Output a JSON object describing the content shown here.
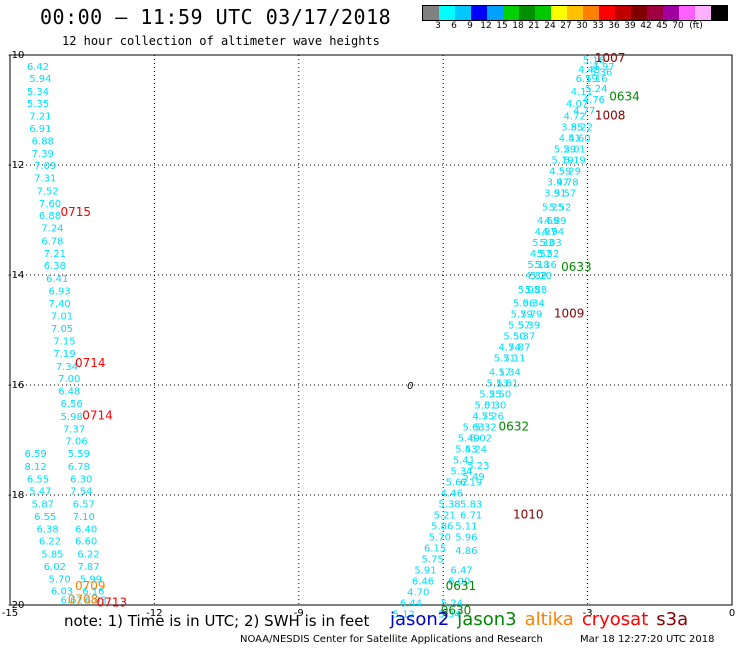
{
  "header": {
    "title": "00:00 – 11:59 UTC 03/17/2018",
    "subtitle": "12 hour collection of altimeter wave heights"
  },
  "legend": {
    "colors": [
      "#808080",
      "#00ffff",
      "#00c8ff",
      "#0000ff",
      "#00a0ff",
      "#00d000",
      "#009000",
      "#00c800",
      "#ffff00",
      "#ffc000",
      "#ff8000",
      "#ff0000",
      "#c00000",
      "#800000",
      "#a00040",
      "#a000a0",
      "#ff60ff",
      "#ffb0ff",
      "#000000"
    ],
    "labels": [
      "3",
      "6",
      "9",
      "12",
      "15",
      "18",
      "21",
      "24",
      "27",
      "30",
      "33",
      "36",
      "39",
      "42",
      "45",
      "70"
    ],
    "unit": "(ft)"
  },
  "note": "note: 1) Time is in UTC; 2) SWH is in feet",
  "missions": [
    {
      "name": "jason2",
      "color": "#0000cc"
    },
    {
      "name": "jason3",
      "color": "#008800"
    },
    {
      "name": "altika",
      "color": "#ff8000"
    },
    {
      "name": "cryosat",
      "color": "#ff0000"
    },
    {
      "name": "s3a",
      "color": "#880000"
    }
  ],
  "footer": {
    "credit": "NOAA/NESDIS Center for Satellite Applications and Research",
    "timestamp": "Mar 18 12:27:20 UTC 2018"
  },
  "chart_data": {
    "type": "scatter",
    "title": "00:00 – 11:59 UTC 03/17/2018",
    "subtitle": "12 hour collection of altimeter wave heights",
    "xlim": [
      -15,
      0
    ],
    "ylim": [
      -20,
      -10
    ],
    "x_ticks": [
      "-15",
      "-12",
      "-9",
      "-6",
      "-3",
      "0"
    ],
    "y_ticks": [
      "-10",
      "-12",
      "-14",
      "-16",
      "-18",
      "-20"
    ],
    "grid": true,
    "contour_label": "0",
    "tracks": [
      {
        "name": "track-left",
        "color": "#00e0ff",
        "points": [
          {
            "x": -14.65,
            "y": -10.2,
            "v": "6.42"
          },
          {
            "x": -14.6,
            "y": -10.42,
            "v": "5.94"
          },
          {
            "x": -14.65,
            "y": -10.65,
            "v": "5.34"
          },
          {
            "x": -14.65,
            "y": -10.87,
            "v": "5.35"
          },
          {
            "x": -14.6,
            "y": -11.1,
            "v": "7.21"
          },
          {
            "x": -14.6,
            "y": -11.33,
            "v": "6.91"
          },
          {
            "x": -14.55,
            "y": -11.55,
            "v": "6.88"
          },
          {
            "x": -14.55,
            "y": -11.78,
            "v": "7.39"
          },
          {
            "x": -14.5,
            "y": -12.0,
            "v": "7.09"
          },
          {
            "x": -14.5,
            "y": -12.23,
            "v": "7.31"
          },
          {
            "x": -14.45,
            "y": -12.46,
            "v": "7.52"
          },
          {
            "x": -14.4,
            "y": -12.69,
            "v": "7.60"
          },
          {
            "x": -14.4,
            "y": -12.91,
            "v": "6.88"
          },
          {
            "x": -14.35,
            "y": -13.14,
            "v": "7.24"
          },
          {
            "x": -14.35,
            "y": -13.37,
            "v": "6.78"
          },
          {
            "x": -14.3,
            "y": -13.6,
            "v": "7.21"
          },
          {
            "x": -14.3,
            "y": -13.82,
            "v": "6.38"
          },
          {
            "x": -14.25,
            "y": -14.05,
            "v": "6.41"
          },
          {
            "x": -14.2,
            "y": -14.28,
            "v": "6.93"
          },
          {
            "x": -14.2,
            "y": -14.51,
            "v": "7.40"
          },
          {
            "x": -14.15,
            "y": -14.74,
            "v": "7.01"
          },
          {
            "x": -14.15,
            "y": -14.96,
            "v": "7.05"
          },
          {
            "x": -14.1,
            "y": -15.19,
            "v": "7.15"
          },
          {
            "x": -14.1,
            "y": -15.42,
            "v": "7.19"
          },
          {
            "x": -14.05,
            "y": -15.65,
            "v": "7.34"
          },
          {
            "x": -14.0,
            "y": -15.87,
            "v": "7.00"
          },
          {
            "x": -14.0,
            "y": -16.1,
            "v": "6.48"
          },
          {
            "x": -13.95,
            "y": -16.33,
            "v": "6.56"
          },
          {
            "x": -13.95,
            "y": -16.56,
            "v": "5.98"
          },
          {
            "x": -13.9,
            "y": -16.79,
            "v": "7.37"
          },
          {
            "x": -13.85,
            "y": -17.01,
            "v": "7.06"
          },
          {
            "x": -13.8,
            "y": -17.24,
            "v": "5.59"
          },
          {
            "x": -13.8,
            "y": -17.47,
            "v": "6.78"
          },
          {
            "x": -13.75,
            "y": -17.7,
            "v": "6.30"
          },
          {
            "x": -13.75,
            "y": -17.92,
            "v": "7.54"
          },
          {
            "x": -13.7,
            "y": -18.15,
            "v": "6.57"
          },
          {
            "x": -13.7,
            "y": -18.38,
            "v": "7.10"
          },
          {
            "x": -13.65,
            "y": -18.61,
            "v": "6.40"
          },
          {
            "x": -13.65,
            "y": -18.83,
            "v": "6.60"
          },
          {
            "x": -13.6,
            "y": -19.06,
            "v": "6.22"
          },
          {
            "x": -13.6,
            "y": -19.29,
            "v": "7.87"
          },
          {
            "x": -13.55,
            "y": -19.52,
            "v": "5.99"
          },
          {
            "x": -13.5,
            "y": -19.74,
            "v": "6.16"
          },
          {
            "x": -13.45,
            "y": -19.9,
            "v": "6.03"
          }
        ]
      },
      {
        "name": "track-left-2",
        "color": "#00e0ff",
        "points": [
          {
            "x": -14.7,
            "y": -17.24,
            "v": "6.59"
          },
          {
            "x": -14.7,
            "y": -17.47,
            "v": "8.12"
          },
          {
            "x": -14.65,
            "y": -17.7,
            "v": "6.55"
          },
          {
            "x": -14.6,
            "y": -17.92,
            "v": "5.47"
          },
          {
            "x": -14.55,
            "y": -18.15,
            "v": "5.87"
          },
          {
            "x": -14.5,
            "y": -18.38,
            "v": "6.55"
          },
          {
            "x": -14.45,
            "y": -18.61,
            "v": "6.38"
          },
          {
            "x": -14.4,
            "y": -18.83,
            "v": "6.22"
          },
          {
            "x": -14.35,
            "y": -19.06,
            "v": "5.85"
          },
          {
            "x": -14.3,
            "y": -19.29,
            "v": "6.02"
          },
          {
            "x": -14.2,
            "y": -19.52,
            "v": "5.70"
          },
          {
            "x": -14.15,
            "y": -19.74,
            "v": "6.03"
          },
          {
            "x": -13.95,
            "y": -19.9,
            "v": "6.62"
          }
        ]
      },
      {
        "name": "track-right",
        "color": "#00e0ff",
        "points": [
          {
            "x": -3.1,
            "y": -10.08,
            "v": "5.16"
          },
          {
            "x": -2.9,
            "y": -10.2,
            "v": "4.97"
          },
          {
            "x": -3.2,
            "y": -10.25,
            "v": "4.48"
          },
          {
            "x": -2.95,
            "y": -10.3,
            "v": "5.36"
          },
          {
            "x": -3.25,
            "y": -10.42,
            "v": "6.19"
          },
          {
            "x": -3.05,
            "y": -10.42,
            "v": "5.16"
          },
          {
            "x": -3.35,
            "y": -10.65,
            "v": "4.11"
          },
          {
            "x": -3.05,
            "y": -10.6,
            "v": "5.24"
          },
          {
            "x": -3.45,
            "y": -10.87,
            "v": "4.07"
          },
          {
            "x": -3.1,
            "y": -10.8,
            "v": "4.76"
          },
          {
            "x": -3.5,
            "y": -11.1,
            "v": "4.72"
          },
          {
            "x": -3.3,
            "y": -11.0,
            "v": "4.77"
          },
          {
            "x": -3.55,
            "y": -11.3,
            "v": "3.85"
          },
          {
            "x": -3.35,
            "y": -11.3,
            "v": "5.22"
          },
          {
            "x": -3.6,
            "y": -11.5,
            "v": "4.51"
          },
          {
            "x": -3.4,
            "y": -11.5,
            "v": "4.60"
          },
          {
            "x": -3.7,
            "y": -11.7,
            "v": "5.29"
          },
          {
            "x": -3.5,
            "y": -11.7,
            "v": "5.01"
          },
          {
            "x": -3.75,
            "y": -11.9,
            "v": "5.19"
          },
          {
            "x": -3.5,
            "y": -11.9,
            "v": "5.19"
          },
          {
            "x": -3.8,
            "y": -12.1,
            "v": "4.59"
          },
          {
            "x": -3.6,
            "y": -12.1,
            "v": "5.29"
          },
          {
            "x": -3.85,
            "y": -12.3,
            "v": "3.97"
          },
          {
            "x": -3.65,
            "y": -12.3,
            "v": "4.78"
          },
          {
            "x": -3.9,
            "y": -12.5,
            "v": "3.91"
          },
          {
            "x": -3.7,
            "y": -12.5,
            "v": "5.57"
          },
          {
            "x": -3.95,
            "y": -12.75,
            "v": "5.25"
          },
          {
            "x": -3.8,
            "y": -12.75,
            "v": "5.52"
          },
          {
            "x": -4.05,
            "y": -13.0,
            "v": "4.69"
          },
          {
            "x": -3.9,
            "y": -13.0,
            "v": "4.89"
          },
          {
            "x": -4.1,
            "y": -13.2,
            "v": "4.97"
          },
          {
            "x": -3.95,
            "y": -13.2,
            "v": "4.94"
          },
          {
            "x": -4.15,
            "y": -13.4,
            "v": "5.33"
          },
          {
            "x": -4.0,
            "y": -13.4,
            "v": "5.03"
          },
          {
            "x": -4.2,
            "y": -13.6,
            "v": "4.52"
          },
          {
            "x": -4.05,
            "y": -13.6,
            "v": "5.52"
          },
          {
            "x": -4.25,
            "y": -13.8,
            "v": "5.18"
          },
          {
            "x": -4.1,
            "y": -13.8,
            "v": "5.16"
          },
          {
            "x": -4.3,
            "y": -14.0,
            "v": "4.82"
          },
          {
            "x": -4.2,
            "y": -14.0,
            "v": "5.20"
          },
          {
            "x": -4.45,
            "y": -14.25,
            "v": "5.05"
          },
          {
            "x": -4.3,
            "y": -14.25,
            "v": "5.88"
          },
          {
            "x": -4.55,
            "y": -14.5,
            "v": "5.06"
          },
          {
            "x": -4.35,
            "y": -14.5,
            "v": "5.34"
          },
          {
            "x": -4.6,
            "y": -14.7,
            "v": "5.79"
          },
          {
            "x": -4.4,
            "y": -14.7,
            "v": "5.79"
          },
          {
            "x": -4.65,
            "y": -14.9,
            "v": "5.57"
          },
          {
            "x": -4.45,
            "y": -14.9,
            "v": "5.39"
          },
          {
            "x": -4.75,
            "y": -15.1,
            "v": "5.50"
          },
          {
            "x": -4.55,
            "y": -15.1,
            "v": "5.37"
          },
          {
            "x": -4.85,
            "y": -15.3,
            "v": "4.74"
          },
          {
            "x": -4.65,
            "y": -15.3,
            "v": "5.87"
          },
          {
            "x": -4.95,
            "y": -15.5,
            "v": "5.71"
          },
          {
            "x": -4.75,
            "y": -15.5,
            "v": "5.11"
          },
          {
            "x": -5.05,
            "y": -15.75,
            "v": "4.17"
          },
          {
            "x": -4.85,
            "y": -15.75,
            "v": "5.34"
          },
          {
            "x": -5.1,
            "y": -15.95,
            "v": "5.13"
          },
          {
            "x": -4.9,
            "y": -15.95,
            "v": "5.61"
          },
          {
            "x": -5.25,
            "y": -16.15,
            "v": "5.25"
          },
          {
            "x": -5.05,
            "y": -16.15,
            "v": "5.50"
          },
          {
            "x": -5.35,
            "y": -16.35,
            "v": "5.01"
          },
          {
            "x": -5.15,
            "y": -16.35,
            "v": "5.30"
          },
          {
            "x": -5.4,
            "y": -16.55,
            "v": "4.75"
          },
          {
            "x": -5.2,
            "y": -16.55,
            "v": "5.26"
          },
          {
            "x": -5.6,
            "y": -16.75,
            "v": "5.63"
          },
          {
            "x": -5.35,
            "y": -16.75,
            "v": "5.32"
          },
          {
            "x": -5.7,
            "y": -16.95,
            "v": "5.49"
          },
          {
            "x": -5.45,
            "y": -16.95,
            "v": "6.02"
          },
          {
            "x": -5.75,
            "y": -17.15,
            "v": "5.43"
          },
          {
            "x": -5.55,
            "y": -17.15,
            "v": "5.24"
          },
          {
            "x": -5.8,
            "y": -17.35,
            "v": "5.41"
          },
          {
            "x": -5.5,
            "y": -17.45,
            "v": "5.23"
          },
          {
            "x": -5.85,
            "y": -17.55,
            "v": "5.34"
          },
          {
            "x": -5.6,
            "y": -17.65,
            "v": "5.49"
          },
          {
            "x": -5.95,
            "y": -17.75,
            "v": "5.62"
          },
          {
            "x": -5.65,
            "y": -17.75,
            "v": "6.19"
          },
          {
            "x": -6.05,
            "y": -17.95,
            "v": "4.46"
          },
          {
            "x": -6.1,
            "y": -18.15,
            "v": "5.38"
          },
          {
            "x": -5.65,
            "y": -18.15,
            "v": "5.83"
          },
          {
            "x": -6.2,
            "y": -18.35,
            "v": "5.21"
          },
          {
            "x": -5.65,
            "y": -18.35,
            "v": "6.71"
          },
          {
            "x": -6.25,
            "y": -18.55,
            "v": "5.86"
          },
          {
            "x": -5.75,
            "y": -18.55,
            "v": "5.11"
          },
          {
            "x": -6.3,
            "y": -18.75,
            "v": "5.70"
          },
          {
            "x": -5.75,
            "y": -18.75,
            "v": "5.96"
          },
          {
            "x": -6.4,
            "y": -18.95,
            "v": "6.15"
          },
          {
            "x": -5.75,
            "y": -19.0,
            "v": "4.86"
          },
          {
            "x": -6.45,
            "y": -19.15,
            "v": "5.75"
          },
          {
            "x": -6.6,
            "y": -19.35,
            "v": "5.91"
          },
          {
            "x": -5.85,
            "y": -19.35,
            "v": "6.47"
          },
          {
            "x": -6.65,
            "y": -19.55,
            "v": "6.46"
          },
          {
            "x": -5.9,
            "y": -19.55,
            "v": "6.00"
          },
          {
            "x": -6.75,
            "y": -19.75,
            "v": "4.70"
          },
          {
            "x": -6.9,
            "y": -19.95,
            "v": "6.44"
          },
          {
            "x": -6.05,
            "y": -19.95,
            "v": "5.24"
          },
          {
            "x": -7.05,
            "y": -20.15,
            "v": "5.12"
          },
          {
            "x": -6.1,
            "y": -20.15,
            "v": "5.34"
          }
        ]
      }
    ],
    "pass_labels": [
      {
        "x": -2.85,
        "y": -10.05,
        "v": "1007",
        "color": "#880000"
      },
      {
        "x": -2.55,
        "y": -10.75,
        "v": "0634",
        "color": "#008800"
      },
      {
        "x": -2.85,
        "y": -11.1,
        "v": "1008",
        "color": "#880000"
      },
      {
        "x": -13.95,
        "y": -12.85,
        "v": "0715",
        "color": "#ff0000"
      },
      {
        "x": -3.55,
        "y": -13.85,
        "v": "0633",
        "color": "#008800"
      },
      {
        "x": -3.7,
        "y": -14.7,
        "v": "1009",
        "color": "#880000"
      },
      {
        "x": -13.65,
        "y": -15.6,
        "v": "0714",
        "color": "#ff0000"
      },
      {
        "x": -13.5,
        "y": -16.55,
        "v": "0714",
        "color": "#ff0000"
      },
      {
        "x": -4.85,
        "y": -16.75,
        "v": "0632",
        "color": "#008800"
      },
      {
        "x": -4.55,
        "y": -18.35,
        "v": "1010",
        "color": "#880000"
      },
      {
        "x": -5.95,
        "y": -19.65,
        "v": "0631",
        "color": "#008800"
      },
      {
        "x": -13.65,
        "y": -19.65,
        "v": "0709",
        "color": "#ff8000"
      },
      {
        "x": -13.8,
        "y": -19.9,
        "v": "0708",
        "color": "#ff8000"
      },
      {
        "x": -13.2,
        "y": -19.95,
        "v": "0713",
        "color": "#ff0000"
      },
      {
        "x": -6.05,
        "y": -20.1,
        "v": "0630",
        "color": "#008800"
      }
    ]
  }
}
